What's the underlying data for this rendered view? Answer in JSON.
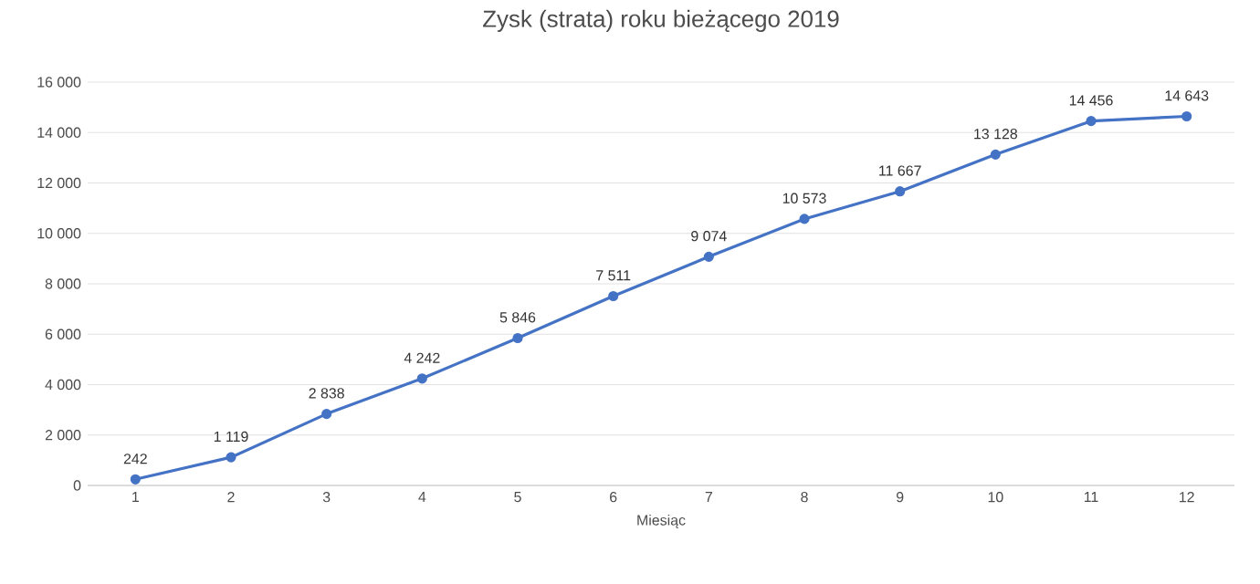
{
  "chart_data": {
    "type": "line",
    "title": "Zysk (strata) roku bieżącego 2019",
    "xlabel": "Miesiąc",
    "categories": [
      "1",
      "2",
      "3",
      "4",
      "5",
      "6",
      "7",
      "8",
      "9",
      "10",
      "11",
      "12"
    ],
    "series": [
      {
        "color": "#4472c4",
        "values": [
          242,
          1119,
          2838,
          4242,
          5846,
          7511,
          9074,
          10573,
          11667,
          13128,
          14456,
          14643
        ],
        "value_labels": [
          "242",
          "1 119",
          "2 838",
          "4 242",
          "5 846",
          "7 511",
          "9 074",
          "10 573",
          "11 667",
          "13 128",
          "14 456",
          "14 643"
        ]
      }
    ],
    "ylim": [
      0,
      16000
    ],
    "yticks": [
      {
        "value": 0,
        "label": "0"
      },
      {
        "value": 2000,
        "label": "2 000"
      },
      {
        "value": 4000,
        "label": "4 000"
      },
      {
        "value": 6000,
        "label": "6 000"
      },
      {
        "value": 8000,
        "label": "8 000"
      },
      {
        "value": 10000,
        "label": "10 000"
      },
      {
        "value": 12000,
        "label": "12 000"
      },
      {
        "value": 14000,
        "label": "14 000"
      },
      {
        "value": 16000,
        "label": "16 000"
      }
    ],
    "grid": "y",
    "marker": "circle",
    "line_style": "solid"
  }
}
